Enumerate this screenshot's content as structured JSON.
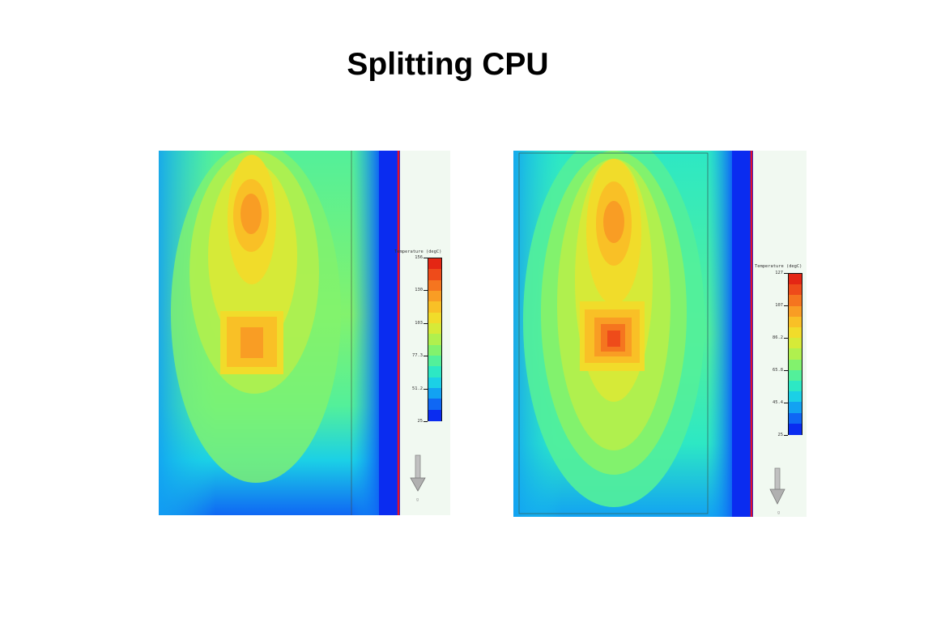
{
  "slide": {
    "title": "Splitting CPU"
  },
  "legend_colors": [
    "#0a2cf0",
    "#0f67f4",
    "#12a2f2",
    "#1bd0e6",
    "#2de8c4",
    "#53f09a",
    "#82f26d",
    "#b0f04e",
    "#d6ea38",
    "#f1dc2a",
    "#f9c026",
    "#f99d24",
    "#f5751f",
    "#ee4b1a",
    "#e42614"
  ],
  "panels": [
    {
      "legend_title": "Temperature (degC)",
      "ticks": [
        "156",
        "130",
        "103",
        "77.3",
        "51.2",
        "25"
      ],
      "gravity_icon": "down-arrow-icon",
      "gravity_label": "g"
    },
    {
      "legend_title": "Temperature (degC)",
      "ticks": [
        "127",
        "107",
        "86.2",
        "65.8",
        "45.4",
        "25"
      ],
      "gravity_icon": "down-arrow-icon",
      "gravity_label": "g"
    }
  ]
}
